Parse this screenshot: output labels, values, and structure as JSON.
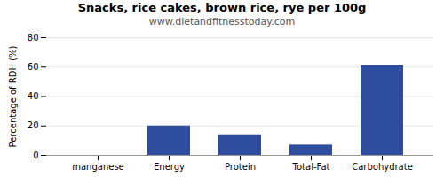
{
  "chart_data": {
    "type": "bar",
    "title": "Snacks, rice cakes, brown rice, rye per 100g",
    "subtitle": "www.dietandfitnesstoday.com",
    "categories": [
      "manganese",
      "Energy",
      "Protein",
      "Total-Fat",
      "Carbohydrate"
    ],
    "values": [
      0,
      20,
      14,
      7,
      61
    ],
    "color": "#2e4d9e",
    "ylabel": "Percentage of RDH (%)",
    "ylim": [
      0,
      80
    ],
    "yticks": [
      0,
      20,
      40,
      60,
      80
    ],
    "grid": true
  }
}
